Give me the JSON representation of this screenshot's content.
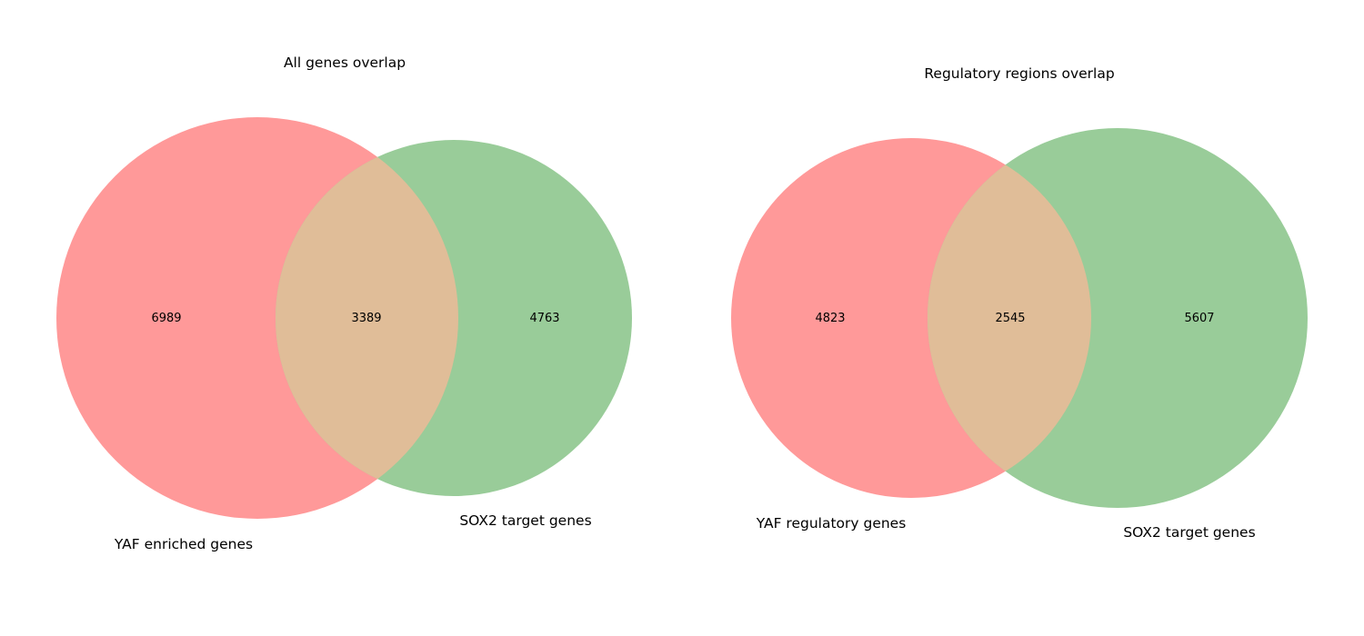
{
  "chart_data": [
    {
      "type": "venn",
      "title": "All genes overlap",
      "sets": [
        {
          "label": "YAF enriched genes",
          "only": 6989,
          "color": "#ff9999"
        },
        {
          "label": "SOX2 target genes",
          "only": 4763,
          "color": "#99cc99"
        }
      ],
      "intersection": 3389,
      "intersection_color": "#e0bd98"
    },
    {
      "type": "venn",
      "title": "Regulatory regions overlap",
      "sets": [
        {
          "label": "YAF regulatory genes",
          "only": 4823,
          "color": "#ff9999"
        },
        {
          "label": "SOX2 target genes",
          "only": 5607,
          "color": "#99cc99"
        }
      ],
      "intersection": 2545,
      "intersection_color": "#e0bd98"
    }
  ]
}
